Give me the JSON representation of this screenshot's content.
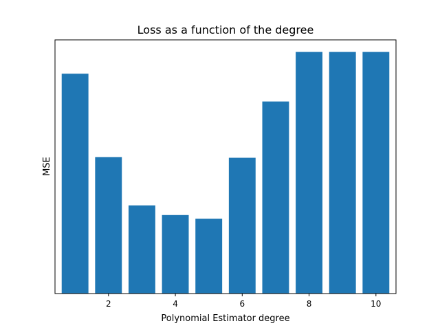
{
  "chart_data": {
    "type": "bar",
    "title": "Loss as a function of the degree",
    "xlabel": "Polynomial Estimator degree",
    "ylabel": "MSE",
    "x": [
      1,
      2,
      3,
      4,
      5,
      6,
      7,
      8,
      9,
      10
    ],
    "values": [
      0.91,
      0.565,
      0.365,
      0.325,
      0.31,
      0.562,
      0.795,
      1.0,
      1.0,
      1.0
    ],
    "xticks": [
      "2",
      "4",
      "6",
      "8",
      "10"
    ],
    "xtick_values": [
      2,
      4,
      6,
      8,
      10
    ],
    "xlim": [
      0.4,
      10.6
    ],
    "ylim": [
      0,
      1.05
    ],
    "yticks_visible": false,
    "grid": false,
    "legend": "none",
    "bar_width": 0.8,
    "bar_color": "#1f77b4"
  }
}
